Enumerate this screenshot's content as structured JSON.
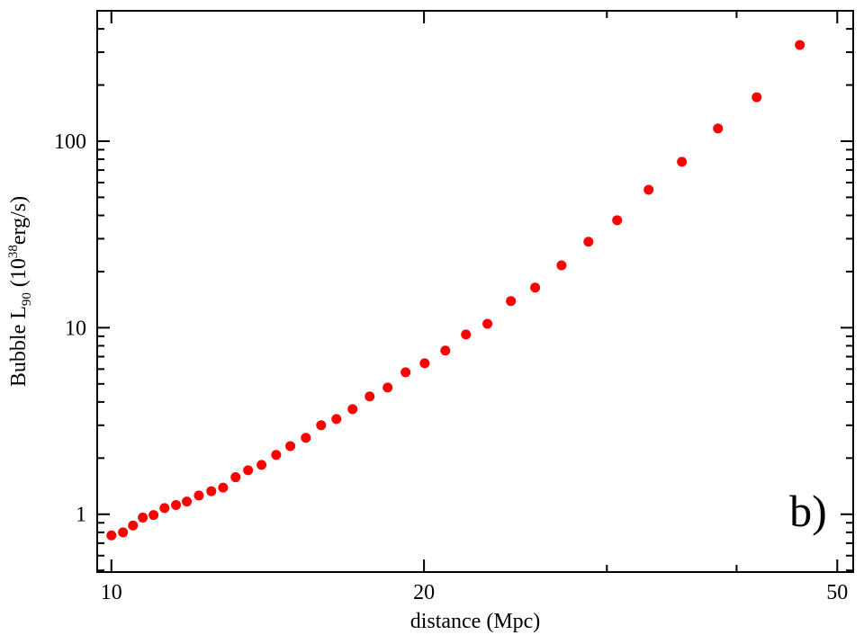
{
  "chart_data": {
    "type": "scatter",
    "log_x": true,
    "log_y": true,
    "color": "#ff0000",
    "x_label": "distance (Mpc)",
    "y_label": [
      "Bubble L",
      "90",
      " (10",
      "38",
      "erg/s)"
    ],
    "annotation": "b)",
    "xlim": [
      9.69,
      51.8
    ],
    "ylim": [
      0.49,
      500
    ],
    "xticks": [
      10,
      20,
      50
    ],
    "xminor": [
      30,
      40
    ],
    "yticks": [
      1,
      10,
      100
    ],
    "yminor": [
      0.5,
      0.6,
      0.7,
      0.8,
      0.9,
      2,
      3,
      4,
      5,
      6,
      7,
      8,
      9,
      20,
      30,
      40,
      50,
      60,
      70,
      80,
      90,
      200,
      300,
      400,
      500
    ],
    "x": [
      10.0,
      10.26,
      10.49,
      10.72,
      10.98,
      11.25,
      11.54,
      11.82,
      12.14,
      12.48,
      12.81,
      13.17,
      13.54,
      13.95,
      14.41,
      14.87,
      15.39,
      15.92,
      16.47,
      17.07,
      17.73,
      18.45,
      19.2,
      20.03,
      20.97,
      21.95,
      23.02,
      24.25,
      25.59,
      27.13,
      28.8,
      30.69,
      32.91,
      35.43,
      38.38,
      41.82,
      46.02
    ],
    "values": [
      0.77,
      0.8,
      0.87,
      0.96,
      0.99,
      1.08,
      1.12,
      1.17,
      1.26,
      1.33,
      1.39,
      1.58,
      1.72,
      1.84,
      2.08,
      2.32,
      2.57,
      3.0,
      3.24,
      3.66,
      4.28,
      4.78,
      5.77,
      6.45,
      7.54,
      9.2,
      10.5,
      13.9,
      16.4,
      21.6,
      28.9,
      37.7,
      54.9,
      77.5,
      117,
      172,
      328
    ]
  }
}
